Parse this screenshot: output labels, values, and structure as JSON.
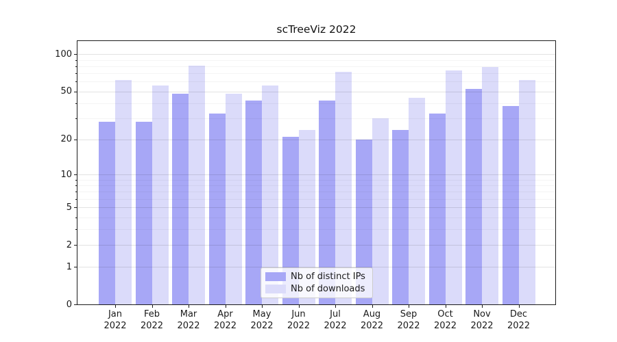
{
  "figure_title": "scTreeViz 2022",
  "chart_data": {
    "type": "bar",
    "title": "scTreeViz 2022",
    "categories": [
      "Jan",
      "Feb",
      "Mar",
      "Apr",
      "May",
      "Jun",
      "Jul",
      "Aug",
      "Sep",
      "Oct",
      "Nov",
      "Dec"
    ],
    "category_year_suffix": "2022",
    "series": [
      {
        "name": "Nb of distinct IPs",
        "color": "#a7a7f6",
        "values": [
          28,
          28,
          48,
          33,
          42,
          21,
          42,
          20,
          24,
          33,
          52,
          38
        ]
      },
      {
        "name": "Nb of downloads",
        "color": "#dbdbfa",
        "values": [
          62,
          56,
          81,
          48,
          56,
          24,
          72,
          30,
          44,
          74,
          79,
          62
        ]
      }
    ],
    "xlabel": "",
    "ylabel": "",
    "yscale": "log1p",
    "ylim": [
      0,
      128
    ],
    "yticks_major": [
      0,
      1,
      2,
      5,
      10,
      20,
      50,
      100
    ],
    "yticks_minor": [
      3,
      4,
      6,
      7,
      8,
      9,
      30,
      40,
      60,
      70,
      80,
      90
    ],
    "grid": "horizontal major+minor",
    "legend_position": "inside bottom-center"
  },
  "style": {
    "bar_color_distinct_ips": "#a7a7f6",
    "bar_color_downloads": "#dbdbfa",
    "axis_color": "#1a1a1a",
    "text_color": "#191919",
    "grid_major_color": "#e2e2e2",
    "grid_minor_color": "#f3f3f3",
    "legend_border_color": "#cccccc",
    "background": "#ffffff"
  }
}
